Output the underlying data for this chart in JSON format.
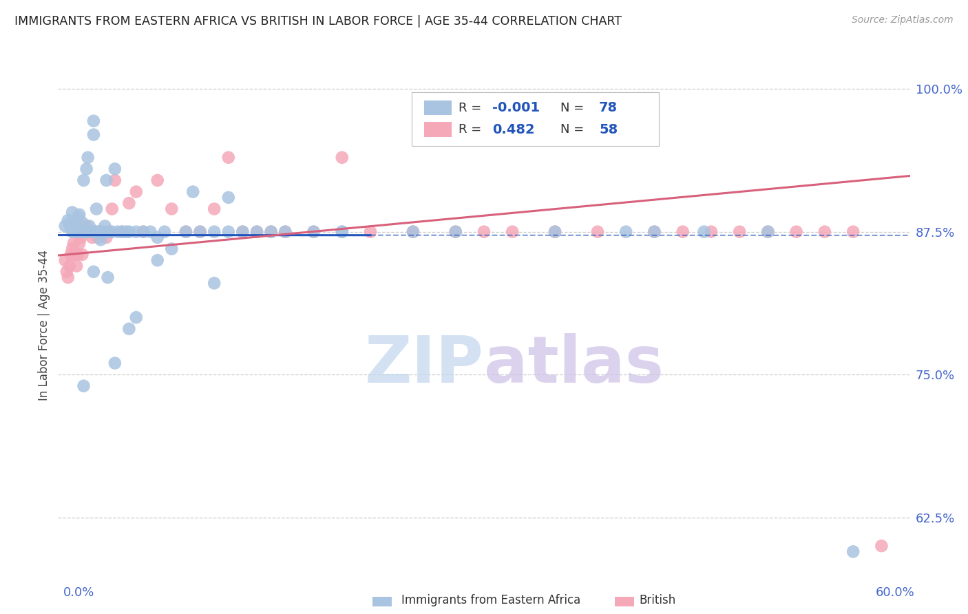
{
  "title": "IMMIGRANTS FROM EASTERN AFRICA VS BRITISH IN LABOR FORCE | AGE 35-44 CORRELATION CHART",
  "source": "Source: ZipAtlas.com",
  "ylabel": "In Labor Force | Age 35-44",
  "x_min": 0.0,
  "x_max": 0.6,
  "y_min": 0.578,
  "y_max": 1.008,
  "r_blue": -0.001,
  "n_blue": 78,
  "r_pink": 0.482,
  "n_pink": 58,
  "blue_color": "#a8c4e0",
  "pink_color": "#f4a8b8",
  "trend_blue_solid_end": 0.2,
  "trend_blue_color": "#2255bb",
  "trend_pink_color": "#d8607a",
  "legend_box_color_blue": "#a8c4e0",
  "legend_box_color_pink": "#f4a8b8",
  "background_color": "#ffffff",
  "grid_color": "#cccccc",
  "title_color": "#222222",
  "axis_label_color": "#4466cc",
  "blue_scatter_x": [
    0.005,
    0.007,
    0.008,
    0.009,
    0.01,
    0.01,
    0.011,
    0.012,
    0.013,
    0.014,
    0.015,
    0.015,
    0.016,
    0.017,
    0.018,
    0.019,
    0.02,
    0.02,
    0.021,
    0.022,
    0.022,
    0.023,
    0.024,
    0.025,
    0.025,
    0.026,
    0.027,
    0.028,
    0.029,
    0.03,
    0.03,
    0.031,
    0.032,
    0.033,
    0.034,
    0.035,
    0.036,
    0.038,
    0.04,
    0.042,
    0.045,
    0.048,
    0.05,
    0.055,
    0.06,
    0.065,
    0.07,
    0.08,
    0.09,
    0.1,
    0.11,
    0.12,
    0.13,
    0.14,
    0.16,
    0.18,
    0.2,
    0.12,
    0.095,
    0.07,
    0.055,
    0.04,
    0.025,
    0.018,
    0.035,
    0.05,
    0.075,
    0.11,
    0.15,
    0.2,
    0.25,
    0.28,
    0.35,
    0.4,
    0.42,
    0.455,
    0.5,
    0.56
  ],
  "blue_scatter_y": [
    0.88,
    0.885,
    0.882,
    0.878,
    0.875,
    0.892,
    0.875,
    0.878,
    0.882,
    0.888,
    0.875,
    0.89,
    0.875,
    0.883,
    0.92,
    0.875,
    0.875,
    0.93,
    0.94,
    0.875,
    0.88,
    0.875,
    0.875,
    0.96,
    0.972,
    0.875,
    0.895,
    0.875,
    0.875,
    0.875,
    0.868,
    0.875,
    0.875,
    0.88,
    0.92,
    0.875,
    0.875,
    0.875,
    0.93,
    0.875,
    0.875,
    0.875,
    0.875,
    0.875,
    0.875,
    0.875,
    0.87,
    0.86,
    0.875,
    0.875,
    0.875,
    0.875,
    0.875,
    0.875,
    0.875,
    0.875,
    0.875,
    0.905,
    0.91,
    0.85,
    0.8,
    0.76,
    0.84,
    0.74,
    0.835,
    0.79,
    0.875,
    0.83,
    0.875,
    0.875,
    0.875,
    0.875,
    0.875,
    0.875,
    0.875,
    0.875,
    0.875,
    0.595
  ],
  "pink_scatter_x": [
    0.005,
    0.006,
    0.007,
    0.008,
    0.009,
    0.01,
    0.011,
    0.012,
    0.013,
    0.014,
    0.015,
    0.016,
    0.017,
    0.018,
    0.02,
    0.022,
    0.024,
    0.026,
    0.028,
    0.03,
    0.032,
    0.034,
    0.036,
    0.038,
    0.04,
    0.045,
    0.05,
    0.055,
    0.06,
    0.07,
    0.08,
    0.09,
    0.1,
    0.11,
    0.12,
    0.13,
    0.14,
    0.15,
    0.16,
    0.18,
    0.2,
    0.22,
    0.25,
    0.28,
    0.3,
    0.32,
    0.35,
    0.38,
    0.4,
    0.42,
    0.44,
    0.46,
    0.48,
    0.5,
    0.52,
    0.54,
    0.56,
    0.58
  ],
  "pink_scatter_y": [
    0.85,
    0.84,
    0.835,
    0.845,
    0.855,
    0.86,
    0.865,
    0.855,
    0.845,
    0.855,
    0.865,
    0.87,
    0.855,
    0.875,
    0.88,
    0.875,
    0.87,
    0.875,
    0.87,
    0.875,
    0.875,
    0.87,
    0.875,
    0.895,
    0.92,
    0.875,
    0.9,
    0.91,
    0.875,
    0.92,
    0.895,
    0.875,
    0.875,
    0.895,
    0.94,
    0.875,
    0.875,
    0.875,
    0.875,
    0.875,
    0.94,
    0.875,
    0.875,
    0.875,
    0.875,
    0.875,
    0.875,
    0.875,
    0.97,
    0.875,
    0.875,
    0.875,
    0.875,
    0.875,
    0.875,
    0.875,
    0.875,
    0.6
  ]
}
